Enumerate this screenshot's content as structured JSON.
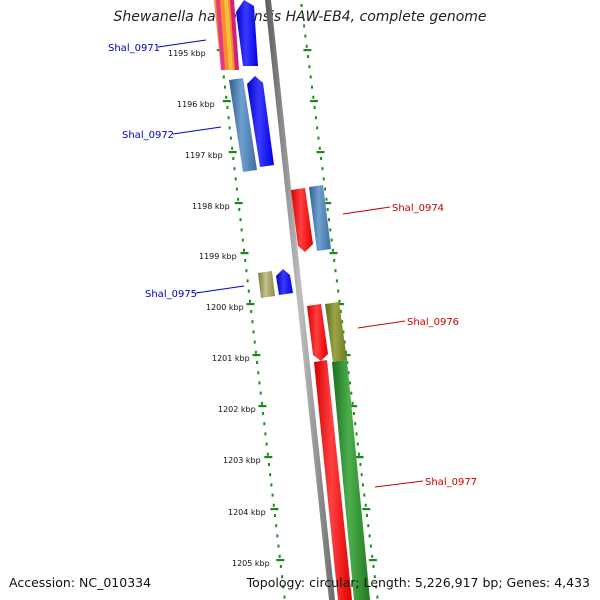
{
  "title": "Shewanella halifaxensis HAW-EB4, complete genome",
  "footer": {
    "accession": "Accession: NC_010334",
    "topology": "Topology: circular; Length: 5,226,917 bp; Genes: 4,433"
  },
  "scale_labels": [
    "1195 kbp",
    "1196 kbp",
    "1197 kbp",
    "1198 kbp",
    "1199 kbp",
    "1200 kbp",
    "1201 kbp",
    "1202 kbp",
    "1203 kbp",
    "1204 kbp",
    "1205 kbp"
  ],
  "genes": [
    {
      "label": "Shal_0971",
      "color": "#0000c8",
      "strand": "forward"
    },
    {
      "label": "Shal_0972",
      "color": "#0000c8",
      "strand": "forward"
    },
    {
      "label": "Shal_0974",
      "color": "#cc0000",
      "strand": "reverse"
    },
    {
      "label": "Shal_0975",
      "color": "#0000c8",
      "strand": "forward"
    },
    {
      "label": "Shal_0976",
      "color": "#cc0000",
      "strand": "reverse"
    },
    {
      "label": "Shal_0977",
      "color": "#cc0000",
      "strand": "reverse"
    }
  ],
  "colors": {
    "forward_gene": "#0000ff",
    "reverse_gene": "#ff0000",
    "forward_label": "#0000c8",
    "reverse_label": "#cc0000",
    "backbone": "#888888",
    "ticks": "#1a8a1a",
    "cds_blue": "#4a86c8",
    "cds_olive": "#a6a26a",
    "cds_green": "#2e8b2e"
  }
}
